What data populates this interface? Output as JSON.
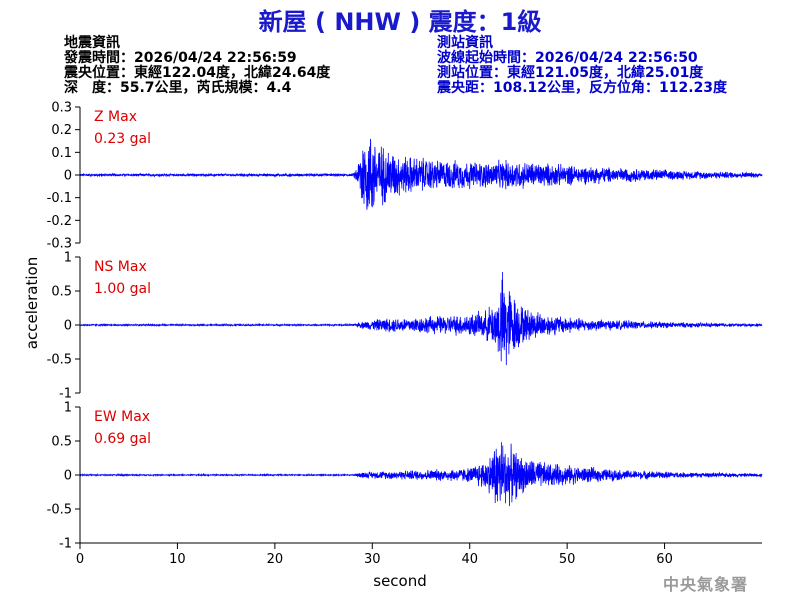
{
  "header": {
    "title": "新屋 ( NHW ) 震度：1級",
    "event_info": {
      "heading": "地震資訊",
      "origin_time": "發震時間：2026/04/24 22:56:59",
      "epicenter": "震央位置：東經122.04度，北緯24.64度",
      "depth_magnitude": "深　度：55.7公里，芮氏規模：4.4"
    },
    "station_info": {
      "heading": "測站資訊",
      "wave_start": "波線起始時間：2026/04/24 22:56:50",
      "station_location": "測站位置：東經121.05度，北緯25.01度",
      "distance": "震央距：108.12公里，反方位角：112.23度"
    }
  },
  "footer": {
    "agency": "中央氣象署"
  },
  "colors": {
    "trace": "#0000ff",
    "title": "#1a1acc",
    "max_label": "#dd0000",
    "station_text": "#0000cc"
  },
  "chart_data": {
    "type": "line",
    "xlabel": "second",
    "ylabel": "acceleration",
    "xlim": [
      0,
      70
    ],
    "xticks": [
      0,
      10,
      20,
      30,
      40,
      50,
      60
    ],
    "panels": [
      {
        "name": "Z Max",
        "max_label": "0.23 gal",
        "ylim": [
          -0.3,
          0.3
        ],
        "yticks": [
          -0.3,
          -0.2,
          -0.1,
          0,
          0.1,
          0.2,
          0.3
        ],
        "ytick_labels": [
          "-0.3",
          "-0.2",
          "-0.1",
          "0",
          "0.1",
          "0.2",
          "0.3"
        ],
        "envelope": [
          {
            "t": 0,
            "amp": 0.006
          },
          {
            "t": 28,
            "amp": 0.006
          },
          {
            "t": 28.5,
            "amp": 0.05
          },
          {
            "t": 29,
            "amp": 0.21
          },
          {
            "t": 30,
            "amp": 0.22
          },
          {
            "t": 31,
            "amp": 0.15
          },
          {
            "t": 33,
            "amp": 0.1
          },
          {
            "t": 37,
            "amp": 0.075
          },
          {
            "t": 42,
            "amp": 0.065
          },
          {
            "t": 44,
            "amp": 0.075
          },
          {
            "t": 50,
            "amp": 0.05
          },
          {
            "t": 56,
            "amp": 0.035
          },
          {
            "t": 62,
            "amp": 0.022
          },
          {
            "t": 70,
            "amp": 0.012
          }
        ]
      },
      {
        "name": "NS Max",
        "max_label": "1.00 gal",
        "ylim": [
          -1,
          1
        ],
        "yticks": [
          -1,
          -0.5,
          0,
          0.5,
          1
        ],
        "ytick_labels": [
          "-1",
          "-0.5",
          "0",
          "0.5",
          "1"
        ],
        "envelope": [
          {
            "t": 0,
            "amp": 0.012
          },
          {
            "t": 28,
            "amp": 0.012
          },
          {
            "t": 29,
            "amp": 0.06
          },
          {
            "t": 31,
            "amp": 0.11
          },
          {
            "t": 34,
            "amp": 0.13
          },
          {
            "t": 38,
            "amp": 0.16
          },
          {
            "t": 41.5,
            "amp": 0.22
          },
          {
            "t": 42.8,
            "amp": 0.45
          },
          {
            "t": 43.5,
            "amp": 0.95
          },
          {
            "t": 44.3,
            "amp": 0.55
          },
          {
            "t": 45.5,
            "amp": 0.3
          },
          {
            "t": 48,
            "amp": 0.18
          },
          {
            "t": 52,
            "amp": 0.1
          },
          {
            "t": 58,
            "amp": 0.06
          },
          {
            "t": 64,
            "amp": 0.035
          },
          {
            "t": 70,
            "amp": 0.02
          }
        ]
      },
      {
        "name": "EW Max",
        "max_label": "0.69 gal",
        "ylim": [
          -1,
          1
        ],
        "yticks": [
          -1,
          -0.5,
          0,
          0.5,
          1
        ],
        "ytick_labels": [
          "-1",
          "-0.5",
          "0",
          "0.5",
          "1"
        ],
        "envelope": [
          {
            "t": 0,
            "amp": 0.01
          },
          {
            "t": 28,
            "amp": 0.01
          },
          {
            "t": 29,
            "amp": 0.05
          },
          {
            "t": 32,
            "amp": 0.07
          },
          {
            "t": 36,
            "amp": 0.09
          },
          {
            "t": 40,
            "amp": 0.12
          },
          {
            "t": 42,
            "amp": 0.3
          },
          {
            "t": 43,
            "amp": 0.69
          },
          {
            "t": 44,
            "amp": 0.5
          },
          {
            "t": 45.5,
            "amp": 0.3
          },
          {
            "t": 48,
            "amp": 0.2
          },
          {
            "t": 52,
            "amp": 0.13
          },
          {
            "t": 56,
            "amp": 0.08
          },
          {
            "t": 62,
            "amp": 0.045
          },
          {
            "t": 70,
            "amp": 0.025
          }
        ]
      }
    ]
  }
}
